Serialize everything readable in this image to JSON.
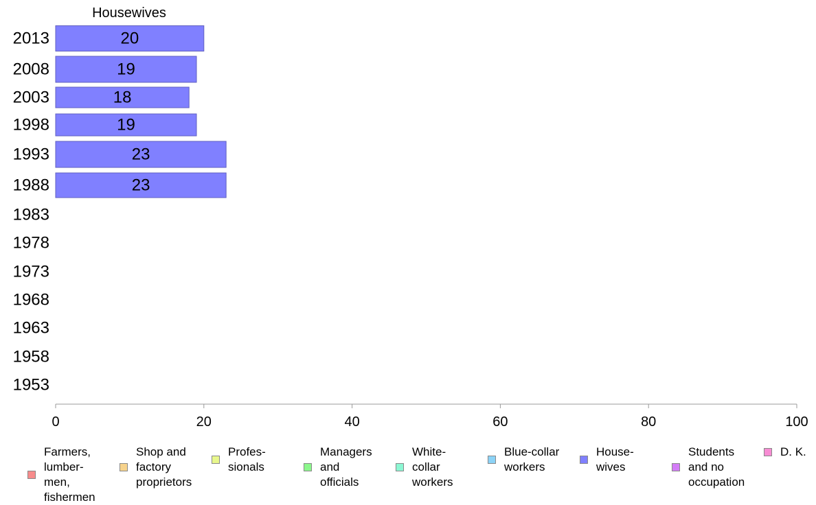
{
  "chart_data": {
    "type": "bar",
    "orientation": "horizontal",
    "title": "Housewives",
    "categories": [
      "2013",
      "2008",
      "2003",
      "1998",
      "1993",
      "1988",
      "1983",
      "1978",
      "1973",
      "1968",
      "1963",
      "1958",
      "1953"
    ],
    "series": [
      {
        "name": "Housewives",
        "color": "#8080ff",
        "values": [
          20,
          19,
          18,
          19,
          23,
          23,
          null,
          null,
          null,
          null,
          null,
          null,
          null
        ],
        "labels": [
          "20",
          "19",
          "18",
          "19",
          "23",
          "23",
          "",
          "",
          "",
          "",
          "",
          "",
          ""
        ]
      }
    ],
    "xlim": [
      0,
      100
    ],
    "xticks": [
      0,
      20,
      40,
      60,
      80,
      100
    ],
    "grid": false,
    "legend_position": "bottom"
  },
  "legend": [
    {
      "label": "Farmers,\nlumber-\nmen,\nfishermen",
      "color": "#f78c8c"
    },
    {
      "label": "Shop and\nfactory\nproprietors",
      "color": "#f7d38c"
    },
    {
      "label": "Profes-\nsionals",
      "color": "#e8f78c"
    },
    {
      "label": "Managers\nand\nofficials",
      "color": "#8cf78c"
    },
    {
      "label": "White-\ncollar\nworkers",
      "color": "#8cf7d3"
    },
    {
      "label": "Blue-collar\nworkers",
      "color": "#8cd3f7"
    },
    {
      "label": "House-\nwives",
      "color": "#8080ff"
    },
    {
      "label": "Students\nand no\noccupation",
      "color": "#d37cf7"
    },
    {
      "label": "D. K.",
      "color": "#f78cd3"
    }
  ]
}
